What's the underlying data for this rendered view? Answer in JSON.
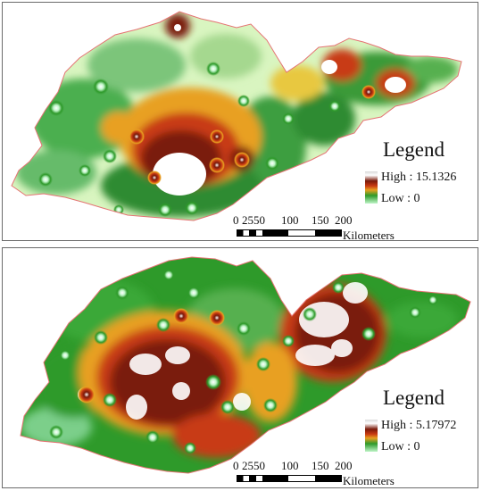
{
  "panels": [
    {
      "legend": {
        "title": "Legend",
        "high": "High : 15.1326",
        "low": "Low : 0"
      },
      "scalebar": {
        "ticks": [
          "0",
          "2550",
          "100",
          "150",
          "200"
        ],
        "unit": "Kilometers"
      }
    },
    {
      "legend": {
        "title": "Legend",
        "high": "High : 5.17972",
        "low": "Low : 0"
      },
      "scalebar": {
        "ticks": [
          "0",
          "2550",
          "100",
          "150",
          "200"
        ],
        "unit": "Kilometers"
      }
    }
  ],
  "colors": {
    "boundary": "#e57373",
    "low": "#bff5c8",
    "mid": "#2e9a2a",
    "orange": "#e8a020",
    "red": "#c83a12",
    "darkred": "#7a1a0a",
    "high": "#ffffff"
  }
}
